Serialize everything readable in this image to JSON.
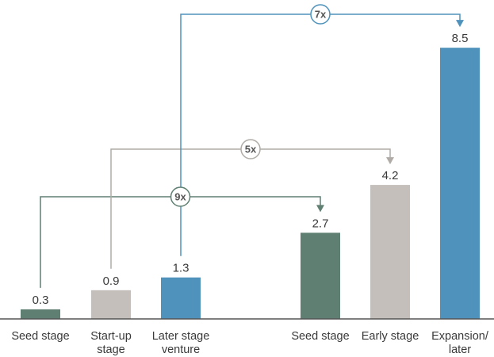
{
  "chart_data": {
    "type": "bar",
    "title": "",
    "xlabel": "",
    "ylabel": "",
    "ylim": [
      0,
      9.2
    ],
    "grid": false,
    "bars": [
      {
        "category": [
          "Seed stage"
        ],
        "value": 0.3,
        "label": "0.3",
        "color": "#5f7f72"
      },
      {
        "category": [
          "Start-up",
          "stage"
        ],
        "value": 0.9,
        "label": "0.9",
        "color": "#c4bfba"
      },
      {
        "category": [
          "Later stage",
          "venture"
        ],
        "value": 1.3,
        "label": "1.3",
        "color": "#4f93bc"
      },
      {
        "category": [
          "Seed stage"
        ],
        "value": 2.7,
        "label": "2.7",
        "color": "#5f7f72"
      },
      {
        "category": [
          "Early stage"
        ],
        "value": 4.2,
        "label": "4.2",
        "color": "#c4bfba"
      },
      {
        "category": [
          "Expansion/",
          "later"
        ],
        "value": 8.5,
        "label": "8.5",
        "color": "#4f93bc"
      }
    ],
    "annotations": [
      {
        "text": "9x",
        "from_bar": 0,
        "to_bar": 3,
        "color": "#5f7f72"
      },
      {
        "text": "5x",
        "from_bar": 1,
        "to_bar": 4,
        "color": "#b0aba6"
      },
      {
        "text": "7x",
        "from_bar": 2,
        "to_bar": 5,
        "color": "#4f93bc"
      }
    ]
  }
}
